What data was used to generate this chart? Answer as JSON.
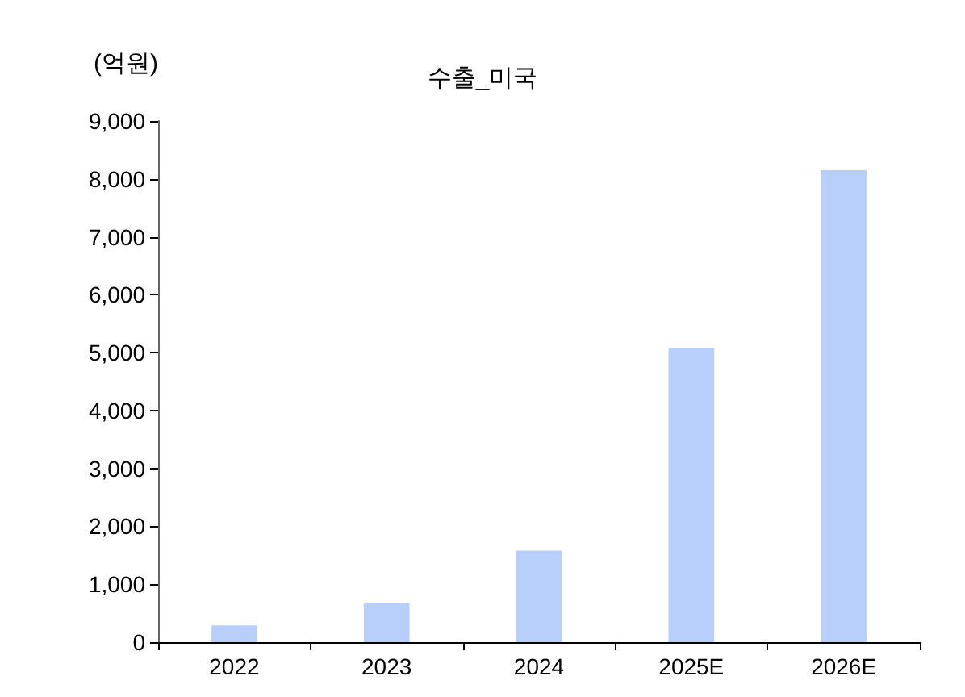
{
  "chart_data": {
    "type": "bar",
    "title": "수출_미국",
    "ylabel": "(억원)",
    "categories": [
      "2022",
      "2023",
      "2024",
      "2025E",
      "2026E"
    ],
    "values": [
      290,
      670,
      1580,
      5080,
      8150
    ],
    "color": "#b9cffb",
    "ylim": [
      0,
      9000
    ],
    "yticks": [
      0,
      {
        "value": 1000,
        "label": "1,000"
      },
      {
        "value": 2000,
        "label": "2,000"
      },
      {
        "value": 3000,
        "label": "3,000"
      },
      {
        "value": 4000,
        "label": "4,000"
      },
      {
        "value": 5000,
        "label": "5,000"
      },
      {
        "value": 6000,
        "label": "6,000"
      },
      {
        "value": 7000,
        "label": "7,000"
      },
      {
        "value": 8000,
        "label": "8,000"
      },
      {
        "value": 9000,
        "label": "9,000"
      }
    ],
    "grid": false
  }
}
